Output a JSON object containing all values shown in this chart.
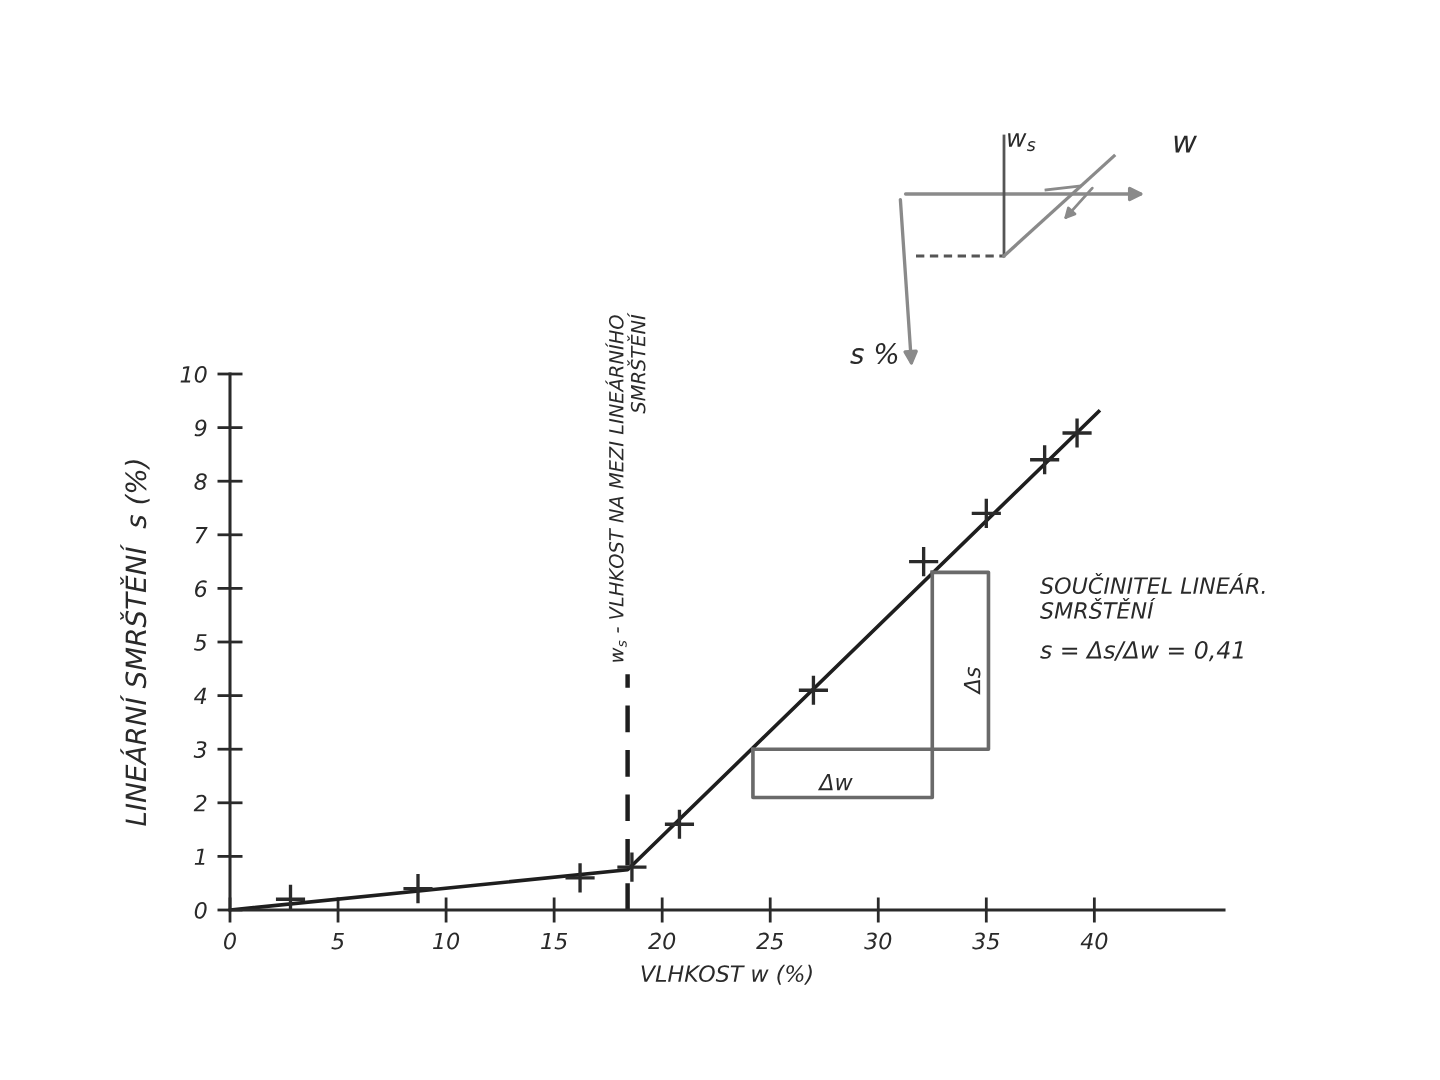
{
  "chart_data": {
    "type": "line",
    "xlabel": "VLHKOST w (%)",
    "ylabel": "LINEÁRNÍ SMRŠTĚNÍ  s (%)",
    "series": [
      {
        "type": "scatter",
        "marker": "cross",
        "color": "#2a2a2a",
        "x": [
          2.8,
          8.7,
          16.2,
          18.6,
          20.8,
          27.0,
          32.1,
          35.0,
          37.7,
          39.2
        ],
        "values": [
          0.2,
          0.4,
          0.6,
          0.8,
          1.6,
          4.1,
          6.5,
          7.4,
          8.4,
          8.9
        ]
      },
      {
        "color": "#1e1e1e",
        "x": [
          0,
          18.4,
          40.2
        ],
        "values": [
          0,
          0.75,
          9.3
        ]
      },
      {
        "color": "#6a6a6a",
        "x": [
          24.2,
          35.1,
          35.1,
          32.5
        ],
        "values": [
          3.0,
          3.0,
          6.3,
          6.3
        ]
      },
      {
        "color": "#6a6a6a",
        "x": [
          24.2,
          24.2,
          32.5,
          32.5
        ],
        "values": [
          3.0,
          2.1,
          2.1,
          6.3
        ]
      }
    ],
    "xlim": [
      0,
      46
    ],
    "xticks": [
      0,
      5,
      10,
      15,
      20,
      25,
      30,
      35,
      40
    ],
    "ylim": [
      0,
      10
    ],
    "yticks": [
      0,
      1,
      2,
      3,
      4,
      5,
      6,
      7,
      8,
      9,
      10
    ],
    "ref_lines": [
      {
        "axis": "x",
        "value": 18.4,
        "label": "w$_{s}$ - VLHKOST NA MEZI LINEÁRNÍHO\nSMRŠTĚNÍ",
        "color": "#1e1e1e",
        "line_style": "dashed"
      }
    ],
    "annotations": [
      "SOUČINITEL LINEÁR.\nSMRŠTĚNÍ",
      "s = Δs/Δw = 0,41",
      "Δw",
      "Δs",
      "w$_{s}$",
      "w",
      "s %"
    ]
  }
}
